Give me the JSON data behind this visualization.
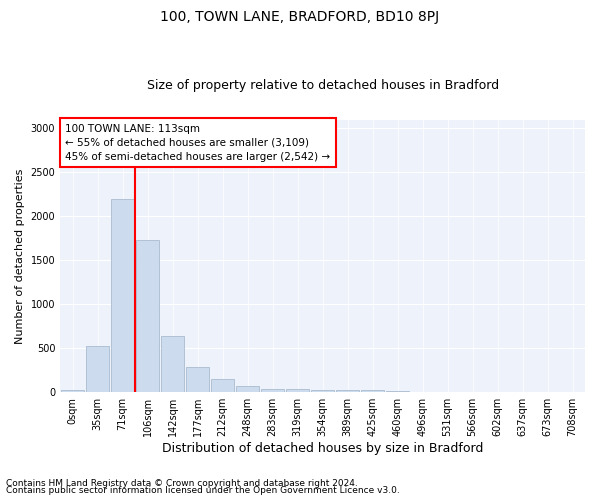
{
  "title1": "100, TOWN LANE, BRADFORD, BD10 8PJ",
  "title2": "Size of property relative to detached houses in Bradford",
  "xlabel": "Distribution of detached houses by size in Bradford",
  "ylabel": "Number of detached properties",
  "footnote1": "Contains HM Land Registry data © Crown copyright and database right 2024.",
  "footnote2": "Contains public sector information licensed under the Open Government Licence v3.0.",
  "annotation_line1": "100 TOWN LANE: 113sqm",
  "annotation_line2": "← 55% of detached houses are smaller (3,109)",
  "annotation_line3": "45% of semi-detached houses are larger (2,542) →",
  "bar_labels": [
    "0sqm",
    "35sqm",
    "71sqm",
    "106sqm",
    "142sqm",
    "177sqm",
    "212sqm",
    "248sqm",
    "283sqm",
    "319sqm",
    "354sqm",
    "389sqm",
    "425sqm",
    "460sqm",
    "496sqm",
    "531sqm",
    "566sqm",
    "602sqm",
    "637sqm",
    "673sqm",
    "708sqm"
  ],
  "bar_values": [
    20,
    520,
    2200,
    1730,
    640,
    290,
    155,
    70,
    40,
    35,
    25,
    20,
    20,
    10,
    5,
    5,
    3,
    2,
    1,
    1,
    1
  ],
  "bar_color": "#ccdcee",
  "bar_edge_color": "#aabbd0",
  "bg_color": "#eef2fb",
  "ylim": [
    0,
    3100
  ],
  "yticks": [
    0,
    500,
    1000,
    1500,
    2000,
    2500,
    3000
  ],
  "red_line_index": 2.5,
  "title1_fontsize": 10,
  "title2_fontsize": 9,
  "ylabel_fontsize": 8,
  "xlabel_fontsize": 9,
  "tick_fontsize": 7,
  "footnote_fontsize": 6.5,
  "annot_fontsize": 7.5
}
